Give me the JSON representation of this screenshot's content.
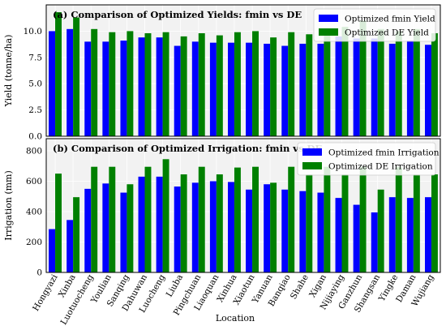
{
  "colors": {
    "fmin": "#0000ff",
    "de": "#008000"
  },
  "xlabel": "Location",
  "chart_data": [
    {
      "type": "bar",
      "title": "(a) Comparison of Optimized Yields: fmin vs DE",
      "ylabel": "Yield (tonne/ha)",
      "ylim": [
        0,
        12.5
      ],
      "yticks": [
        0.0,
        2.5,
        5.0,
        7.5,
        10.0
      ],
      "ytick_labels": [
        "0.0",
        "2.5",
        "5.0",
        "7.5",
        "10.0"
      ],
      "legend_position": "top-right",
      "categories": [
        "Hongyazi",
        "Xinba",
        "Luotuocheng",
        "Youlian",
        "Sanqing",
        "Dahuwan",
        "Luocheng",
        "Liuba",
        "Pingchuan",
        "Liaoquan",
        "Xinhua",
        "Xiaotun",
        "Yanuan",
        "Banqiao",
        "Shahe",
        "Xigan",
        "Nijiaying",
        "Ganzhun",
        "Shangsan",
        "Yingke",
        "Daman",
        "Wujiang"
      ],
      "series": [
        {
          "name": "Optimized fmin Yield",
          "values": [
            10.0,
            10.2,
            9.0,
            9.0,
            9.1,
            9.4,
            9.4,
            8.6,
            9.0,
            8.9,
            8.9,
            8.9,
            8.8,
            8.6,
            8.8,
            8.8,
            9.5,
            9.3,
            9.3,
            8.8,
            9.1,
            8.7
          ]
        },
        {
          "name": "Optimized DE Yield",
          "values": [
            11.8,
            11.3,
            10.2,
            9.9,
            10.0,
            9.8,
            9.9,
            9.5,
            9.8,
            9.6,
            9.9,
            10.0,
            9.4,
            9.9,
            9.7,
            10.0,
            10.4,
            11.0,
            10.2,
            10.0,
            10.2,
            9.8
          ]
        }
      ]
    },
    {
      "type": "bar",
      "title": "(b) Comparison of Optimized Irrigation: fmin vs DE",
      "ylabel": "Irrigation (mm)",
      "ylim": [
        0,
        880
      ],
      "yticks": [
        0,
        200,
        400,
        600,
        800
      ],
      "ytick_labels": [
        "0",
        "200",
        "400",
        "600",
        "800"
      ],
      "legend_position": "top-right",
      "categories": [
        "Hongyazi",
        "Xinba",
        "Luotuocheng",
        "Youlian",
        "Sanqing",
        "Dahuwan",
        "Luocheng",
        "Liuba",
        "Pingchuan",
        "Liaoquan",
        "Xinhua",
        "Xiaotun",
        "Yanuan",
        "Banqiao",
        "Shahe",
        "Xigan",
        "Nijiaying",
        "Ganzhun",
        "Shangsan",
        "Yingke",
        "Daman",
        "Wujiang"
      ],
      "series": [
        {
          "name": "Optimized fmin Irrigation",
          "values": [
            285,
            345,
            550,
            585,
            525,
            630,
            630,
            565,
            590,
            600,
            595,
            545,
            580,
            545,
            535,
            525,
            490,
            445,
            395,
            495,
            490,
            495
          ]
        },
        {
          "name": "Optimized DE Irrigation",
          "values": [
            650,
            495,
            695,
            695,
            580,
            695,
            745,
            645,
            695,
            645,
            690,
            695,
            590,
            695,
            645,
            695,
            645,
            695,
            545,
            695,
            645,
            645
          ]
        }
      ]
    }
  ]
}
